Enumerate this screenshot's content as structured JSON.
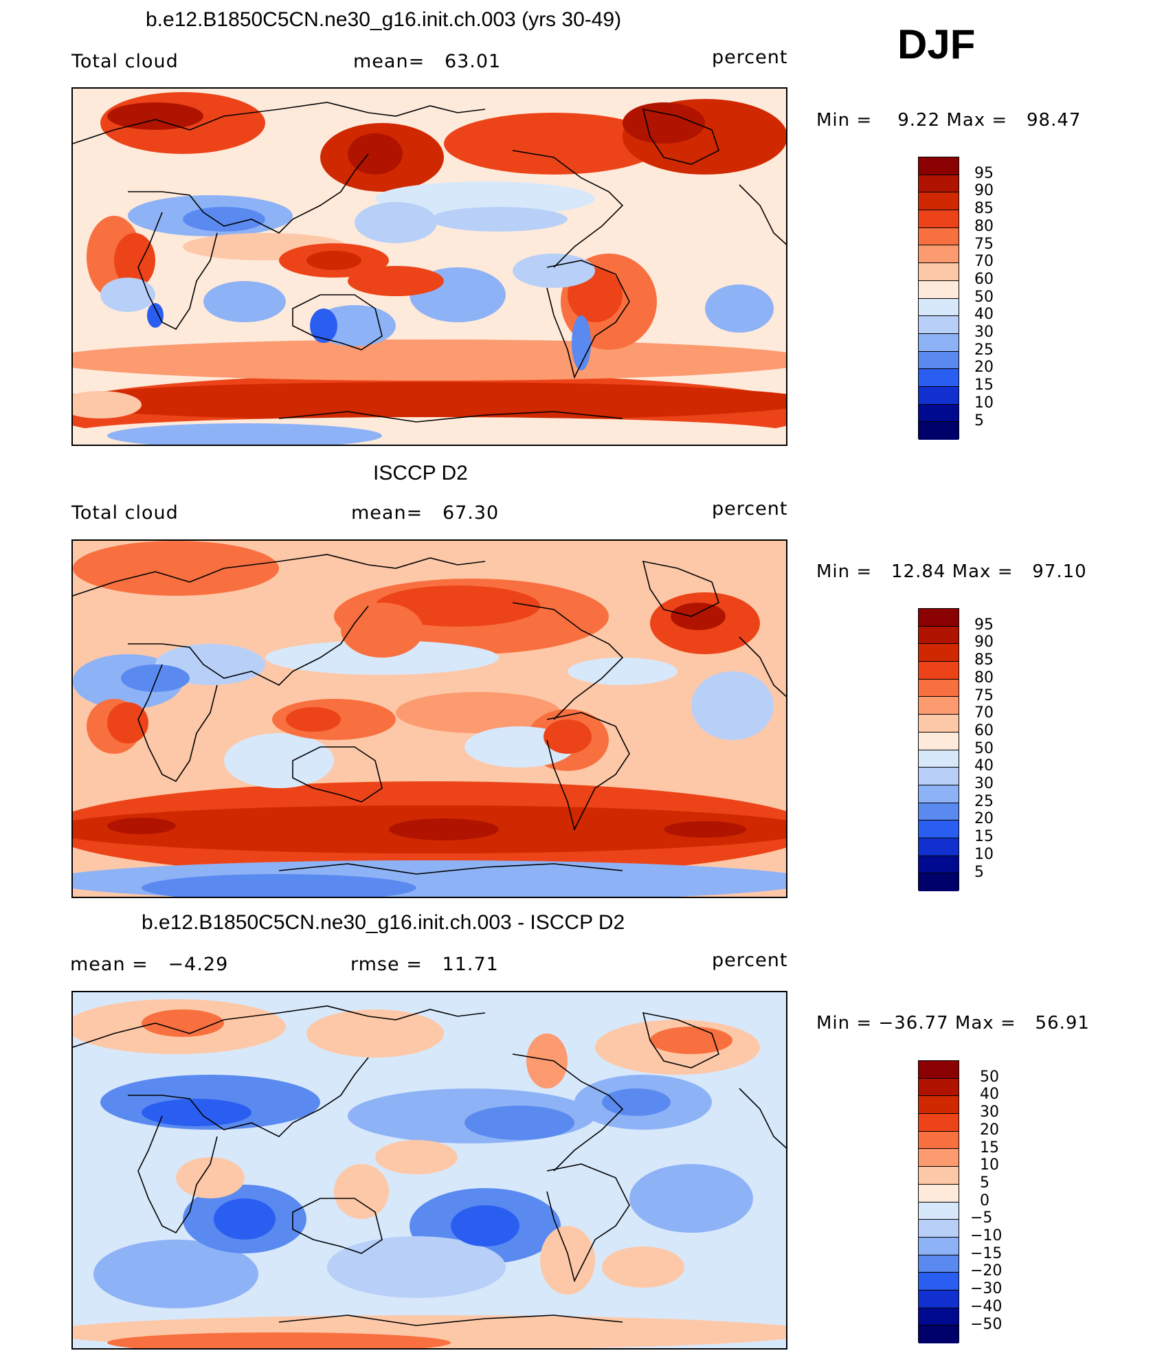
{
  "season": "DJF",
  "panels": [
    {
      "title": "b.e12.B1850C5CN.ne30_g16.init.ch.003 (yrs 30-49)",
      "left_label": "Total cloud",
      "center_label": "mean=   63.01",
      "right_label": "percent",
      "minmax": "Min =    9.22 Max =   98.47",
      "colorbar": {
        "levels": [
          "95",
          "90",
          "85",
          "80",
          "75",
          "70",
          "60",
          "50",
          "40",
          "30",
          "25",
          "20",
          "15",
          "10",
          "5"
        ],
        "colors": [
          "#8b0000",
          "#b01400",
          "#d02800",
          "#ec4418",
          "#f87040",
          "#fc9a70",
          "#fdc8a8",
          "#feeadb",
          "#d8e8fb",
          "#b8d0f8",
          "#8eb2f6",
          "#5a8af0",
          "#2a5ef0",
          "#1030d0",
          "#000a90",
          "#00006a"
        ]
      },
      "field": "model"
    },
    {
      "title": "ISCCP D2",
      "left_label": "Total cloud",
      "center_label": "mean=   67.30",
      "right_label": "percent",
      "minmax": "Min =   12.84 Max =   97.10",
      "colorbar": {
        "levels": [
          "95",
          "90",
          "85",
          "80",
          "75",
          "70",
          "60",
          "50",
          "40",
          "30",
          "25",
          "20",
          "15",
          "10",
          "5"
        ],
        "colors": [
          "#8b0000",
          "#b01400",
          "#d02800",
          "#ec4418",
          "#f87040",
          "#fc9a70",
          "#fdc8a8",
          "#feeadb",
          "#d8e8fb",
          "#b8d0f8",
          "#8eb2f6",
          "#5a8af0",
          "#2a5ef0",
          "#1030d0",
          "#000a90",
          "#00006a"
        ]
      },
      "field": "obs"
    },
    {
      "title": "b.e12.B1850C5CN.ne30_g16.init.ch.003 - ISCCP D2",
      "left_label": "mean =   −4.29",
      "center_label": "rmse =   11.71",
      "right_label": "percent",
      "minmax": "Min = −36.77 Max =   56.91",
      "colorbar": {
        "levels": [
          "50",
          "40",
          "30",
          "20",
          "15",
          "10",
          "5",
          "0",
          "−5",
          "−10",
          "−15",
          "−20",
          "−30",
          "−40",
          "−50"
        ],
        "colors": [
          "#8b0000",
          "#b01400",
          "#d02800",
          "#ec4418",
          "#f87040",
          "#fc9a70",
          "#fdc8a8",
          "#feeadb",
          "#d8e8fb",
          "#b8d0f8",
          "#8eb2f6",
          "#5a8af0",
          "#2a5ef0",
          "#1030d0",
          "#000a90",
          "#00006a"
        ]
      },
      "field": "diff"
    }
  ]
}
